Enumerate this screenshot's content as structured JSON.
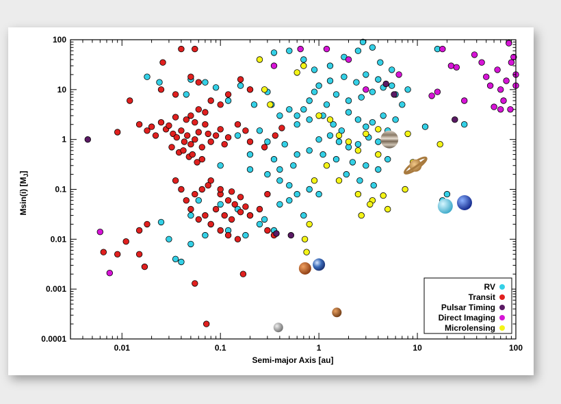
{
  "chart_data": {
    "type": "scatter",
    "title": "",
    "xlabel": "Semi-major Axis [au]",
    "ylabel": "Msin(i) [M",
    "ylabel_sub": "J",
    "ylabel_end": "]",
    "xscale": "log",
    "yscale": "log",
    "xlim": [
      0.003,
      100
    ],
    "ylim": [
      0.0001,
      100
    ],
    "grid": false,
    "legend_placement": "bottom-right",
    "x_ticks": [
      {
        "value": 0.01,
        "label": "0.01"
      },
      {
        "value": 0.1,
        "label": "0.1"
      },
      {
        "value": 1,
        "label": "1"
      },
      {
        "value": 10,
        "label": "10"
      },
      {
        "value": 100,
        "label": "100"
      }
    ],
    "y_ticks": [
      {
        "value": 0.0001,
        "label": "0.0001"
      },
      {
        "value": 0.001,
        "label": "0.001"
      },
      {
        "value": 0.01,
        "label": "0.01"
      },
      {
        "value": 0.1,
        "label": "0.1"
      },
      {
        "value": 1,
        "label": "1"
      },
      {
        "value": 10,
        "label": "10"
      },
      {
        "value": 100,
        "label": "100"
      }
    ],
    "series": [
      {
        "name": "RV",
        "color": "#34d0e6",
        "points": [
          [
            0.018,
            18
          ],
          [
            0.024,
            14
          ],
          [
            0.05,
            16
          ],
          [
            0.07,
            14
          ],
          [
            0.045,
            8
          ],
          [
            0.16,
            12
          ],
          [
            0.09,
            11
          ],
          [
            0.2,
            10
          ],
          [
            0.3,
            9
          ],
          [
            0.12,
            6
          ],
          [
            0.22,
            5
          ],
          [
            0.33,
            5
          ],
          [
            0.5,
            4
          ],
          [
            0.4,
            3
          ],
          [
            0.6,
            3
          ],
          [
            0.25,
            1.5
          ],
          [
            0.15,
            1.2
          ],
          [
            0.3,
            0.9
          ],
          [
            0.45,
            0.8
          ],
          [
            0.2,
            0.5
          ],
          [
            0.35,
            0.4
          ],
          [
            0.6,
            0.5
          ],
          [
            0.8,
            0.6
          ],
          [
            0.1,
            0.3
          ],
          [
            0.2,
            0.25
          ],
          [
            0.3,
            0.2
          ],
          [
            0.4,
            0.15
          ],
          [
            0.5,
            0.12
          ],
          [
            0.06,
            0.06
          ],
          [
            0.1,
            0.05
          ],
          [
            0.15,
            0.04
          ],
          [
            0.2,
            0.03
          ],
          [
            0.28,
            0.025
          ],
          [
            0.4,
            0.05
          ],
          [
            0.6,
            0.08
          ],
          [
            0.8,
            0.1
          ],
          [
            0.05,
            0.03
          ],
          [
            0.08,
            0.02
          ],
          [
            0.12,
            0.015
          ],
          [
            0.18,
            0.012
          ],
          [
            0.25,
            0.02
          ],
          [
            0.35,
            0.015
          ],
          [
            0.03,
            0.01
          ],
          [
            0.05,
            0.008
          ],
          [
            0.07,
            0.012
          ],
          [
            0.035,
            0.004
          ],
          [
            0.04,
            0.0035
          ],
          [
            0.025,
            0.022
          ],
          [
            0.6,
            2
          ],
          [
            0.8,
            2.5
          ],
          [
            1.1,
            3
          ],
          [
            1.4,
            2
          ],
          [
            1.7,
            1.5
          ],
          [
            2,
            3.5
          ],
          [
            2.5,
            2.5
          ],
          [
            3,
            1.8
          ],
          [
            3.5,
            2.2
          ],
          [
            4.5,
            3
          ],
          [
            1,
            1
          ],
          [
            1.3,
            1.2
          ],
          [
            1.6,
            0.9
          ],
          [
            2,
            0.7
          ],
          [
            2.5,
            0.8
          ],
          [
            3.2,
            1.1
          ],
          [
            4,
            0.9
          ],
          [
            1.2,
            5
          ],
          [
            1.5,
            8
          ],
          [
            2,
            6
          ],
          [
            2.7,
            7
          ],
          [
            3.5,
            9
          ],
          [
            4.5,
            11
          ],
          [
            1,
            12
          ],
          [
            1.3,
            15
          ],
          [
            1.8,
            18
          ],
          [
            2.4,
            14
          ],
          [
            3,
            20
          ],
          [
            4,
            16
          ],
          [
            5.5,
            12
          ],
          [
            0.8,
            6
          ],
          [
            0.9,
            9
          ],
          [
            0.7,
            4
          ],
          [
            1.1,
            0.5
          ],
          [
            1.5,
            0.4
          ],
          [
            2.2,
            0.35
          ],
          [
            3,
            0.3
          ],
          [
            4,
            0.25
          ],
          [
            5,
            0.4
          ],
          [
            1.9,
            0.2
          ],
          [
            2.6,
            0.15
          ],
          [
            3.6,
            0.12
          ],
          [
            0.9,
            25
          ],
          [
            1.3,
            30
          ],
          [
            1.8,
            45
          ],
          [
            2.5,
            60
          ],
          [
            3.5,
            70
          ],
          [
            4.2,
            35
          ],
          [
            5.5,
            25
          ],
          [
            6,
            8
          ],
          [
            7,
            5
          ],
          [
            8,
            10
          ],
          [
            5,
            1.5
          ],
          [
            6,
            2.5
          ],
          [
            0.5,
            0.06
          ],
          [
            0.7,
            0.03
          ],
          [
            1,
            0.08
          ],
          [
            0.4,
            0.25
          ],
          [
            0.55,
            0.3
          ],
          [
            0.35,
            55
          ],
          [
            0.5,
            60
          ],
          [
            0.7,
            40
          ],
          [
            2.8,
            90
          ],
          [
            16,
            65
          ],
          [
            12,
            1.8
          ],
          [
            30,
            2
          ],
          [
            20,
            0.08
          ],
          [
            18,
            0.06
          ]
        ]
      },
      {
        "name": "Transit",
        "color": "#e0201f",
        "points": [
          [
            0.026,
            35
          ],
          [
            0.04,
            65
          ],
          [
            0.055,
            65
          ],
          [
            0.025,
            10
          ],
          [
            0.035,
            8
          ],
          [
            0.05,
            18
          ],
          [
            0.06,
            14
          ],
          [
            0.08,
            6
          ],
          [
            0.1,
            5
          ],
          [
            0.12,
            8
          ],
          [
            0.16,
            16
          ],
          [
            0.2,
            10
          ],
          [
            0.015,
            2
          ],
          [
            0.018,
            1.5
          ],
          [
            0.02,
            1.8
          ],
          [
            0.022,
            1.2
          ],
          [
            0.025,
            2.2
          ],
          [
            0.028,
            1.6
          ],
          [
            0.03,
            1.9
          ],
          [
            0.033,
            1.3
          ],
          [
            0.036,
            1.1
          ],
          [
            0.04,
            1.5
          ],
          [
            0.043,
            0.9
          ],
          [
            0.046,
            1.2
          ],
          [
            0.05,
            0.8
          ],
          [
            0.055,
            1
          ],
          [
            0.06,
            1.4
          ],
          [
            0.065,
            0.7
          ],
          [
            0.07,
            2
          ],
          [
            0.075,
            1.3
          ],
          [
            0.08,
            0.9
          ],
          [
            0.09,
            1.2
          ],
          [
            0.1,
            1.6
          ],
          [
            0.11,
            0.8
          ],
          [
            0.12,
            1.1
          ],
          [
            0.032,
            0.7
          ],
          [
            0.038,
            0.55
          ],
          [
            0.042,
            0.6
          ],
          [
            0.048,
            0.45
          ],
          [
            0.052,
            0.5
          ],
          [
            0.058,
            0.35
          ],
          [
            0.065,
            0.4
          ],
          [
            0.045,
            2.5
          ],
          [
            0.05,
            3
          ],
          [
            0.055,
            2.2
          ],
          [
            0.035,
            2.8
          ],
          [
            0.06,
            4
          ],
          [
            0.07,
            3.5
          ],
          [
            0.012,
            6
          ],
          [
            0.009,
            1.4
          ],
          [
            0.15,
            2
          ],
          [
            0.18,
            1.5
          ],
          [
            0.2,
            0.9
          ],
          [
            0.28,
            0.7
          ],
          [
            0.36,
            1.2
          ],
          [
            0.42,
            1.7
          ],
          [
            0.08,
            0.15
          ],
          [
            0.1,
            0.08
          ],
          [
            0.12,
            0.06
          ],
          [
            0.14,
            0.05
          ],
          [
            0.09,
            0.04
          ],
          [
            0.11,
            0.03
          ],
          [
            0.13,
            0.025
          ],
          [
            0.16,
            0.035
          ],
          [
            0.18,
            0.045
          ],
          [
            0.2,
            0.03
          ],
          [
            0.06,
            0.025
          ],
          [
            0.07,
            0.03
          ],
          [
            0.08,
            0.02
          ],
          [
            0.1,
            0.015
          ],
          [
            0.12,
            0.012
          ],
          [
            0.15,
            0.01
          ],
          [
            0.05,
            0.04
          ],
          [
            0.045,
            0.06
          ],
          [
            0.055,
            0.08
          ],
          [
            0.065,
            0.1
          ],
          [
            0.075,
            0.12
          ],
          [
            0.1,
            0.1
          ],
          [
            0.13,
            0.09
          ],
          [
            0.16,
            0.07
          ],
          [
            0.25,
            0.04
          ],
          [
            0.3,
            0.08
          ],
          [
            0.04,
            0.1
          ],
          [
            0.035,
            0.15
          ],
          [
            0.018,
            0.02
          ],
          [
            0.015,
            0.015
          ],
          [
            0.011,
            0.009
          ],
          [
            0.009,
            0.005
          ],
          [
            0.015,
            0.005
          ],
          [
            0.017,
            0.0028
          ],
          [
            0.0065,
            0.0055
          ],
          [
            0.055,
            0.0013
          ],
          [
            0.17,
            0.002
          ],
          [
            0.072,
            0.0002
          ],
          [
            0.35,
            0.012
          ],
          [
            0.3,
            0.015
          ]
        ]
      },
      {
        "name": "Pulsar Timing",
        "color": "#5a1a64",
        "points": [
          [
            0.0045,
            1
          ],
          [
            0.37,
            0.013
          ],
          [
            0.52,
            0.012
          ],
          [
            4.8,
            13
          ],
          [
            5.8,
            8
          ],
          [
            24,
            2.5
          ]
        ]
      },
      {
        "name": "Direct Imaging",
        "color": "#d614d6",
        "points": [
          [
            0.006,
            0.014
          ],
          [
            0.0075,
            0.0021
          ],
          [
            0.35,
            30
          ],
          [
            0.65,
            65
          ],
          [
            1.2,
            65
          ],
          [
            2,
            40
          ],
          [
            3,
            10
          ],
          [
            6.5,
            20
          ],
          [
            14,
            7.5
          ],
          [
            16,
            9
          ],
          [
            18,
            65
          ],
          [
            22,
            30
          ],
          [
            25,
            28
          ],
          [
            30,
            6
          ],
          [
            38,
            50
          ],
          [
            45,
            35
          ],
          [
            50,
            18
          ],
          [
            55,
            12
          ],
          [
            60,
            4.5
          ],
          [
            65,
            25
          ],
          [
            70,
            10
          ],
          [
            75,
            6
          ],
          [
            80,
            15
          ],
          [
            85,
            85
          ],
          [
            90,
            35
          ],
          [
            95,
            45
          ],
          [
            100,
            20
          ],
          [
            100,
            12
          ],
          [
            70,
            4
          ],
          [
            88,
            4
          ]
        ]
      },
      {
        "name": "Microlensing",
        "color": "#f4f417",
        "points": [
          [
            0.25,
            40
          ],
          [
            0.32,
            5
          ],
          [
            0.28,
            10
          ],
          [
            0.6,
            22
          ],
          [
            0.7,
            30
          ],
          [
            1,
            3
          ],
          [
            1.3,
            2.5
          ],
          [
            1.6,
            1.2
          ],
          [
            2,
            0.9
          ],
          [
            2.5,
            0.6
          ],
          [
            3,
            1.3
          ],
          [
            4,
            1.6
          ],
          [
            5,
            1
          ],
          [
            1.6,
            0.15
          ],
          [
            2.5,
            0.08
          ],
          [
            3.5,
            0.06
          ],
          [
            4.5,
            0.075
          ],
          [
            5,
            0.04
          ],
          [
            7.5,
            0.1
          ],
          [
            8,
            1.3
          ],
          [
            9,
            0.35
          ],
          [
            2.7,
            0.03
          ],
          [
            0.8,
            0.02
          ],
          [
            0.72,
            0.01
          ],
          [
            0.75,
            0.0055
          ],
          [
            0.9,
            0.15
          ],
          [
            1.2,
            0.3
          ],
          [
            3.3,
            0.05
          ],
          [
            17,
            0.8
          ],
          [
            4,
            0.5
          ]
        ]
      }
    ],
    "legend": [
      {
        "label": "RV",
        "color": "#34d0e6"
      },
      {
        "label": "Transit",
        "color": "#e0201f"
      },
      {
        "label": "Pulsar Timing",
        "color": "#5a1a64"
      },
      {
        "label": "Direct Imaging",
        "color": "#d614d6"
      },
      {
        "label": "Microlensing",
        "color": "#f4f417"
      }
    ],
    "solar_system": [
      {
        "icon": "mercury-icon",
        "x": 0.387,
        "y": 0.00017,
        "color": "#9a9a9a"
      },
      {
        "icon": "venus-icon",
        "x": 0.723,
        "y": 0.0026,
        "color": "#c7602c"
      },
      {
        "icon": "earth-icon",
        "x": 1.0,
        "y": 0.0031,
        "color": "#3a6bb8"
      },
      {
        "icon": "mars-icon",
        "x": 1.52,
        "y": 0.00034,
        "color": "#b36a2e"
      },
      {
        "icon": "jupiter-icon",
        "x": 5.2,
        "y": 1.0,
        "color": "#b9aa96"
      },
      {
        "icon": "saturn-icon",
        "x": 9.58,
        "y": 0.3,
        "color": "#c8904a"
      },
      {
        "icon": "uranus-icon",
        "x": 19.2,
        "y": 0.046,
        "color": "#7fd6ec"
      },
      {
        "icon": "neptune-icon",
        "x": 30.1,
        "y": 0.054,
        "color": "#2a56d8"
      }
    ]
  }
}
